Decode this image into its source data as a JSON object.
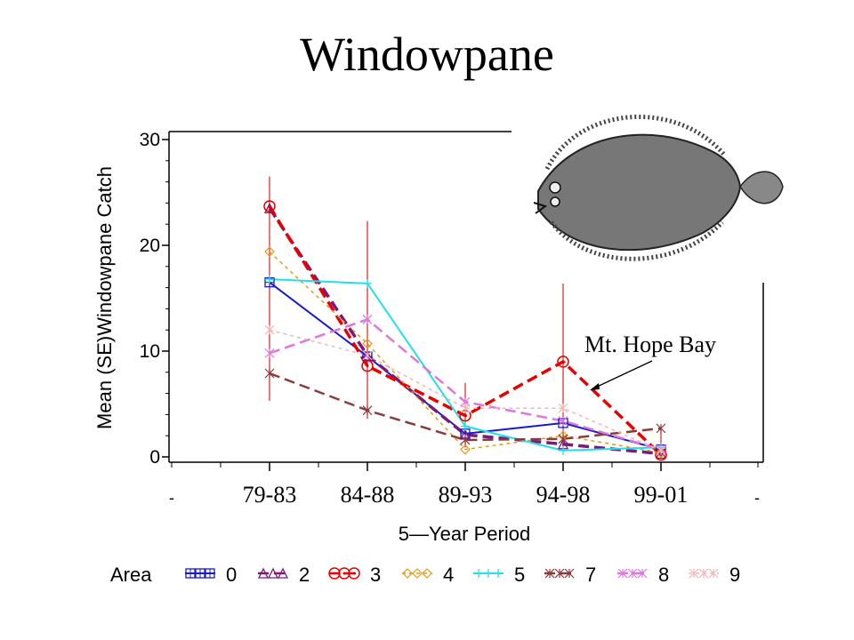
{
  "slide_title": "Windowpane",
  "colors": {
    "area_0": "#1a1acc",
    "area_2": "#7a1a7a",
    "area_3": "#e60000",
    "area_4": "#e39b1a",
    "area_5": "#22e0e6",
    "area_7": "#8b3a3a",
    "area_8": "#dd77dd",
    "area_9": "#f5b5b5",
    "error_bar": "#dd2222"
  },
  "chart_data": {
    "type": "line",
    "title": "",
    "xlabel": "5—Year Period",
    "ylabel": "Mean (SE)Windowpane Catch",
    "categories": [
      "79-83",
      "84-88",
      "89-93",
      "94-98",
      "99-01"
    ],
    "x_edge_labels": [
      "-",
      "-"
    ],
    "ylim": [
      0,
      30
    ],
    "yticks": [
      "0",
      "10",
      "20",
      "30"
    ],
    "grid": false,
    "legend": {
      "position": "bottom",
      "title": "Area",
      "entries": [
        "0",
        "2",
        "3",
        "4",
        "5",
        "7",
        "8",
        "9"
      ]
    },
    "series": [
      {
        "name": "0",
        "values": [
          16.5,
          9.5,
          2.2,
          3.2,
          0.7
        ],
        "color_key": "area_0",
        "marker": "square-plus",
        "dash": "solid",
        "width": 2
      },
      {
        "name": "2",
        "values": [
          23.5,
          9.6,
          2.1,
          1.2,
          0.3
        ],
        "color_key": "area_2",
        "marker": "triangle",
        "dash": "long",
        "width": 3.5
      },
      {
        "name": "3",
        "values": [
          23.7,
          8.6,
          3.9,
          9.0,
          0.2
        ],
        "color_key": "area_3",
        "marker": "circle-dot",
        "dash": "long",
        "width": 3.5
      },
      {
        "name": "4",
        "values": [
          19.4,
          10.7,
          0.7,
          2.0,
          0.4
        ],
        "color_key": "area_4",
        "marker": "diamond",
        "dash": "short",
        "width": 1.5
      },
      {
        "name": "5",
        "values": [
          16.8,
          16.4,
          2.9,
          0.6,
          0.9
        ],
        "color_key": "area_5",
        "marker": "plus",
        "dash": "solid",
        "width": 2
      },
      {
        "name": "7",
        "values": [
          7.9,
          4.4,
          1.6,
          1.7,
          2.7
        ],
        "color_key": "area_7",
        "marker": "star",
        "dash": "long",
        "width": 2.5
      },
      {
        "name": "8",
        "values": [
          9.8,
          13.0,
          5.2,
          3.4,
          0.7
        ],
        "color_key": "area_8",
        "marker": "star",
        "dash": "long",
        "width": 2.5
      },
      {
        "name": "9",
        "values": [
          12.0,
          9.6,
          4.6,
          4.6,
          0.6
        ],
        "color_key": "area_9",
        "marker": "star",
        "dash": "short",
        "width": 1.5
      }
    ],
    "error_bars": {
      "series": "3",
      "lower": [
        5.3,
        3.6,
        0.9,
        0.5,
        0.0
      ],
      "upper": [
        26.5,
        22.3,
        7.0,
        16.4,
        2.6
      ]
    },
    "annotations": [
      {
        "text": "Mt. Hope Bay",
        "points_to_series": "3",
        "points_to_category": "94-98"
      }
    ]
  },
  "fish_image": {
    "subject": "windowpane-flounder-illustration"
  }
}
